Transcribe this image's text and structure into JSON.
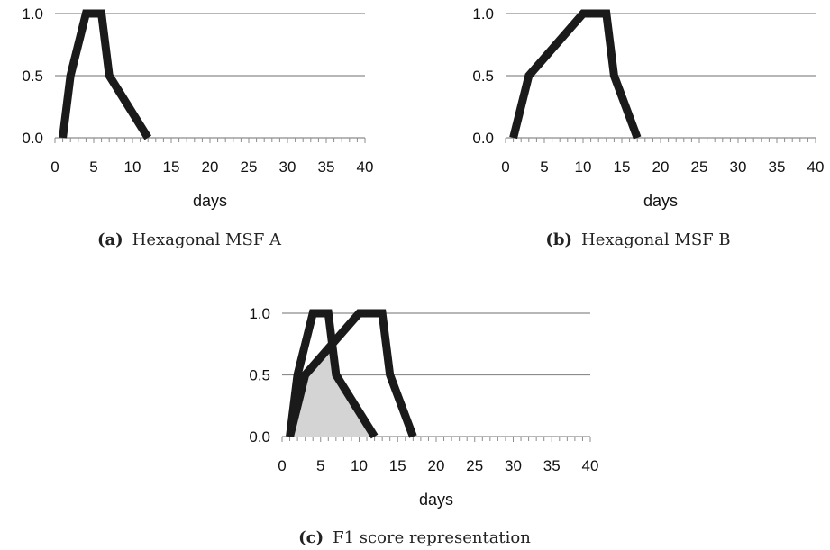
{
  "chart_data": [
    {
      "type": "line",
      "caption_tag": "(a)",
      "caption_text": "Hexagonal MSF A",
      "xlabel": "days",
      "ylabel": "",
      "xlim": [
        0,
        40
      ],
      "ylim": [
        0,
        1
      ],
      "xticks": [
        "0",
        "5",
        "10",
        "15",
        "20",
        "25",
        "30",
        "35",
        "40"
      ],
      "yticks": [
        "0.0",
        "0.5",
        "1.0"
      ],
      "grid": true,
      "series": [
        {
          "x": [
            1,
            2,
            4,
            6,
            7,
            12
          ],
          "y": [
            0,
            0.5,
            1,
            1,
            0.5,
            0
          ]
        }
      ]
    },
    {
      "type": "line",
      "caption_tag": "(b)",
      "caption_text": "Hexagonal MSF B",
      "xlabel": "days",
      "ylabel": "",
      "xlim": [
        0,
        40
      ],
      "ylim": [
        0,
        1
      ],
      "xticks": [
        "0",
        "5",
        "10",
        "15",
        "20",
        "25",
        "30",
        "35",
        "40"
      ],
      "yticks": [
        "0.0",
        "0.5",
        "1.0"
      ],
      "grid": true,
      "series": [
        {
          "x": [
            1,
            3,
            10,
            13,
            14,
            17
          ],
          "y": [
            0,
            0.5,
            1,
            1,
            0.5,
            0
          ]
        }
      ]
    },
    {
      "type": "area",
      "caption_tag": "(c)",
      "caption_text": "F1 score representation",
      "xlabel": "days",
      "ylabel": "",
      "xlim": [
        0,
        40
      ],
      "ylim": [
        0,
        1
      ],
      "xticks": [
        "0",
        "5",
        "10",
        "15",
        "20",
        "25",
        "30",
        "35",
        "40"
      ],
      "yticks": [
        "0.0",
        "0.5",
        "1.0"
      ],
      "grid": true,
      "series": [
        {
          "x": [
            1,
            2,
            4,
            6,
            7,
            12
          ],
          "y": [
            0,
            0.5,
            1,
            1,
            0.5,
            0
          ]
        },
        {
          "x": [
            1,
            3,
            10,
            13,
            14,
            17
          ],
          "y": [
            0,
            0.5,
            1,
            1,
            0.5,
            0
          ]
        }
      ],
      "overlap": {
        "x": [
          1,
          2,
          3,
          5.77,
          7,
          12
        ],
        "y": [
          0,
          0.5,
          0.5,
          0.75,
          0.5,
          0
        ]
      },
      "overlap_color": "#d4d4d4"
    }
  ]
}
